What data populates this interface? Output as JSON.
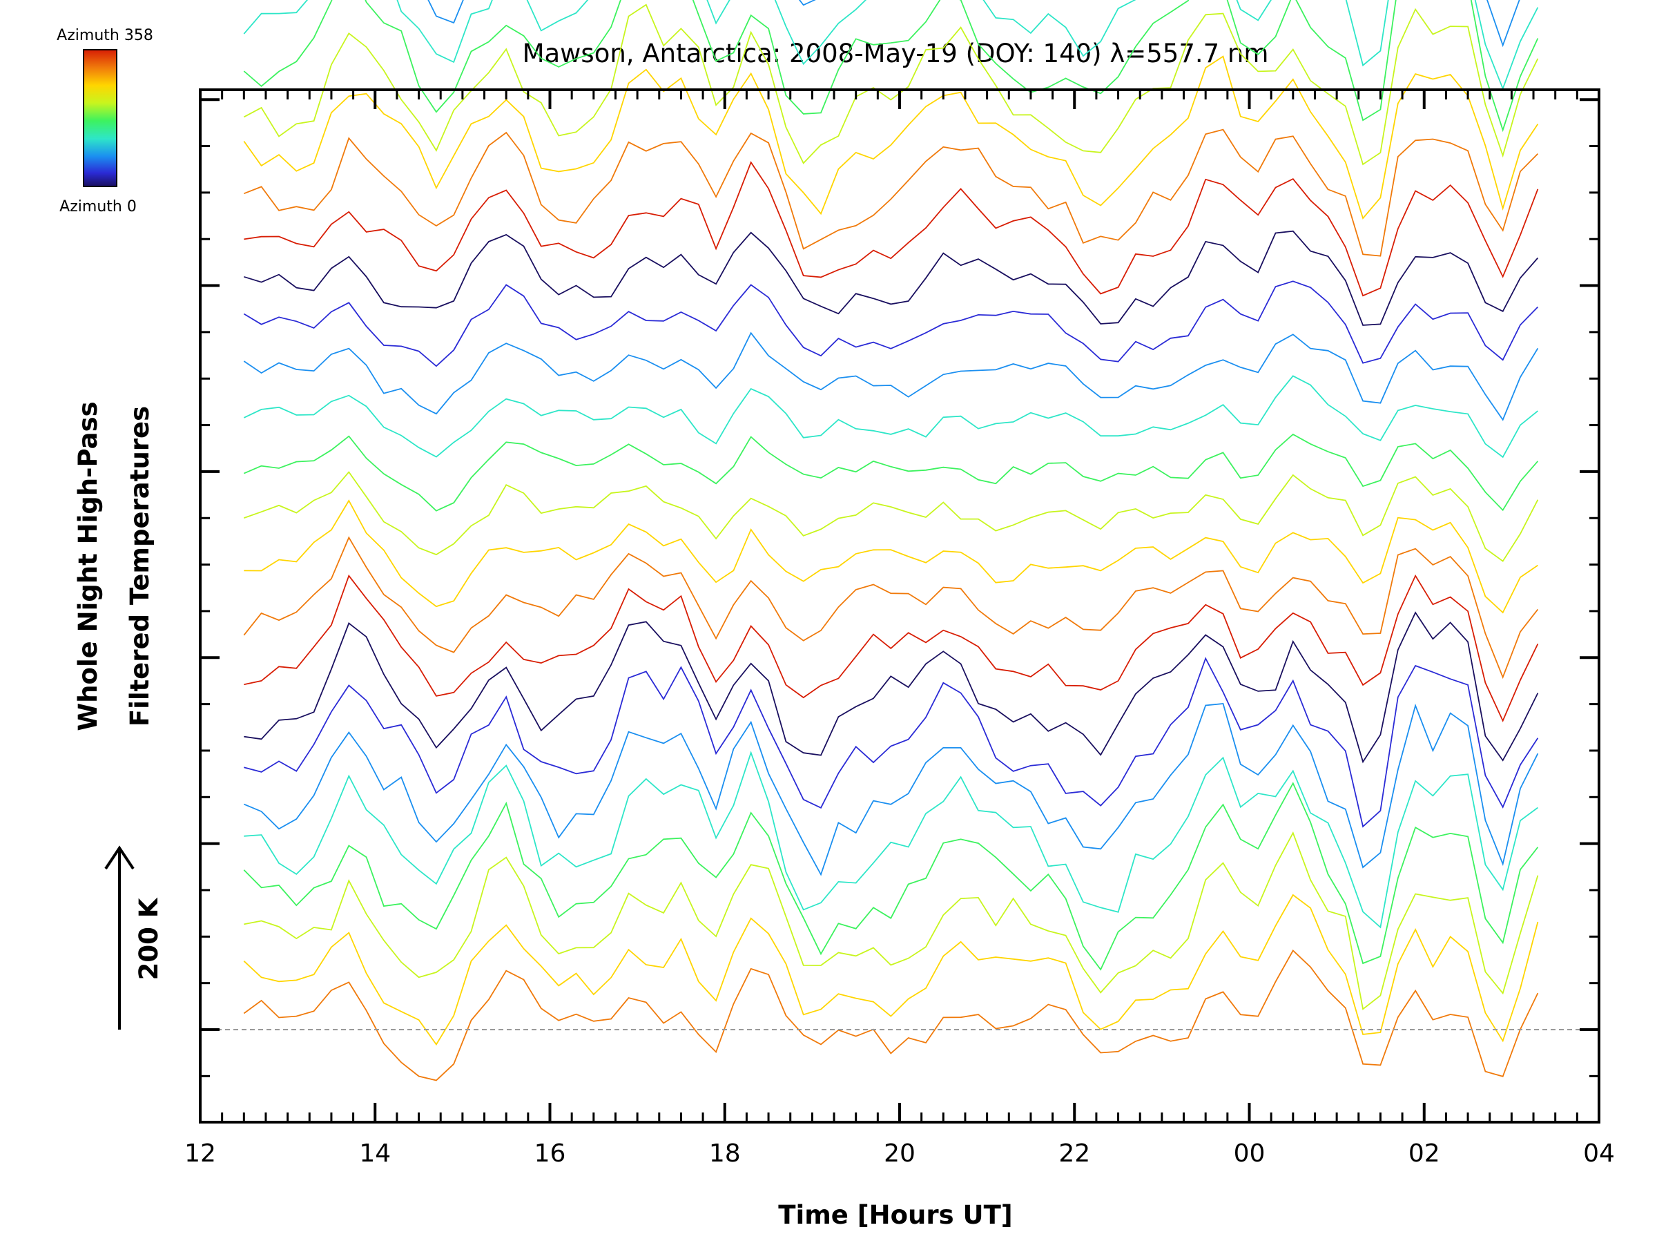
{
  "chart_data": {
    "type": "line",
    "title": "Mawson, Antarctica: 2008-May-19 (DOY: 140) λ=557.7 nm",
    "xlabel": "Time [Hours UT]",
    "ylabel_line1": "Whole Night High-Pass",
    "ylabel_line2": "Filtered Temperatures",
    "scale_annotation": "200 K",
    "x_ticks": [
      "12",
      "14",
      "16",
      "18",
      "20",
      "22",
      "00",
      "02",
      "04"
    ],
    "xlim_hours": [
      12,
      28
    ],
    "data_start_hour": 12.5,
    "data_end_hour": 27.3,
    "num_series": 64,
    "series_offset_K": 40,
    "scale_bar_K": 200,
    "colorbar": {
      "top_label": "Azimuth 358",
      "bottom_label": "Azimuth 0",
      "colormap": "rainbow",
      "colors": [
        "#d81e05",
        "#f07a0b",
        "#ffd500",
        "#c8f51e",
        "#3df25f",
        "#2ee6c8",
        "#1b8ff0",
        "#2b2bd6",
        "#1a1060"
      ]
    },
    "baseline": {
      "style": "dashed",
      "color": "#999999"
    },
    "grid": false,
    "legend": "colorbar top-left"
  }
}
